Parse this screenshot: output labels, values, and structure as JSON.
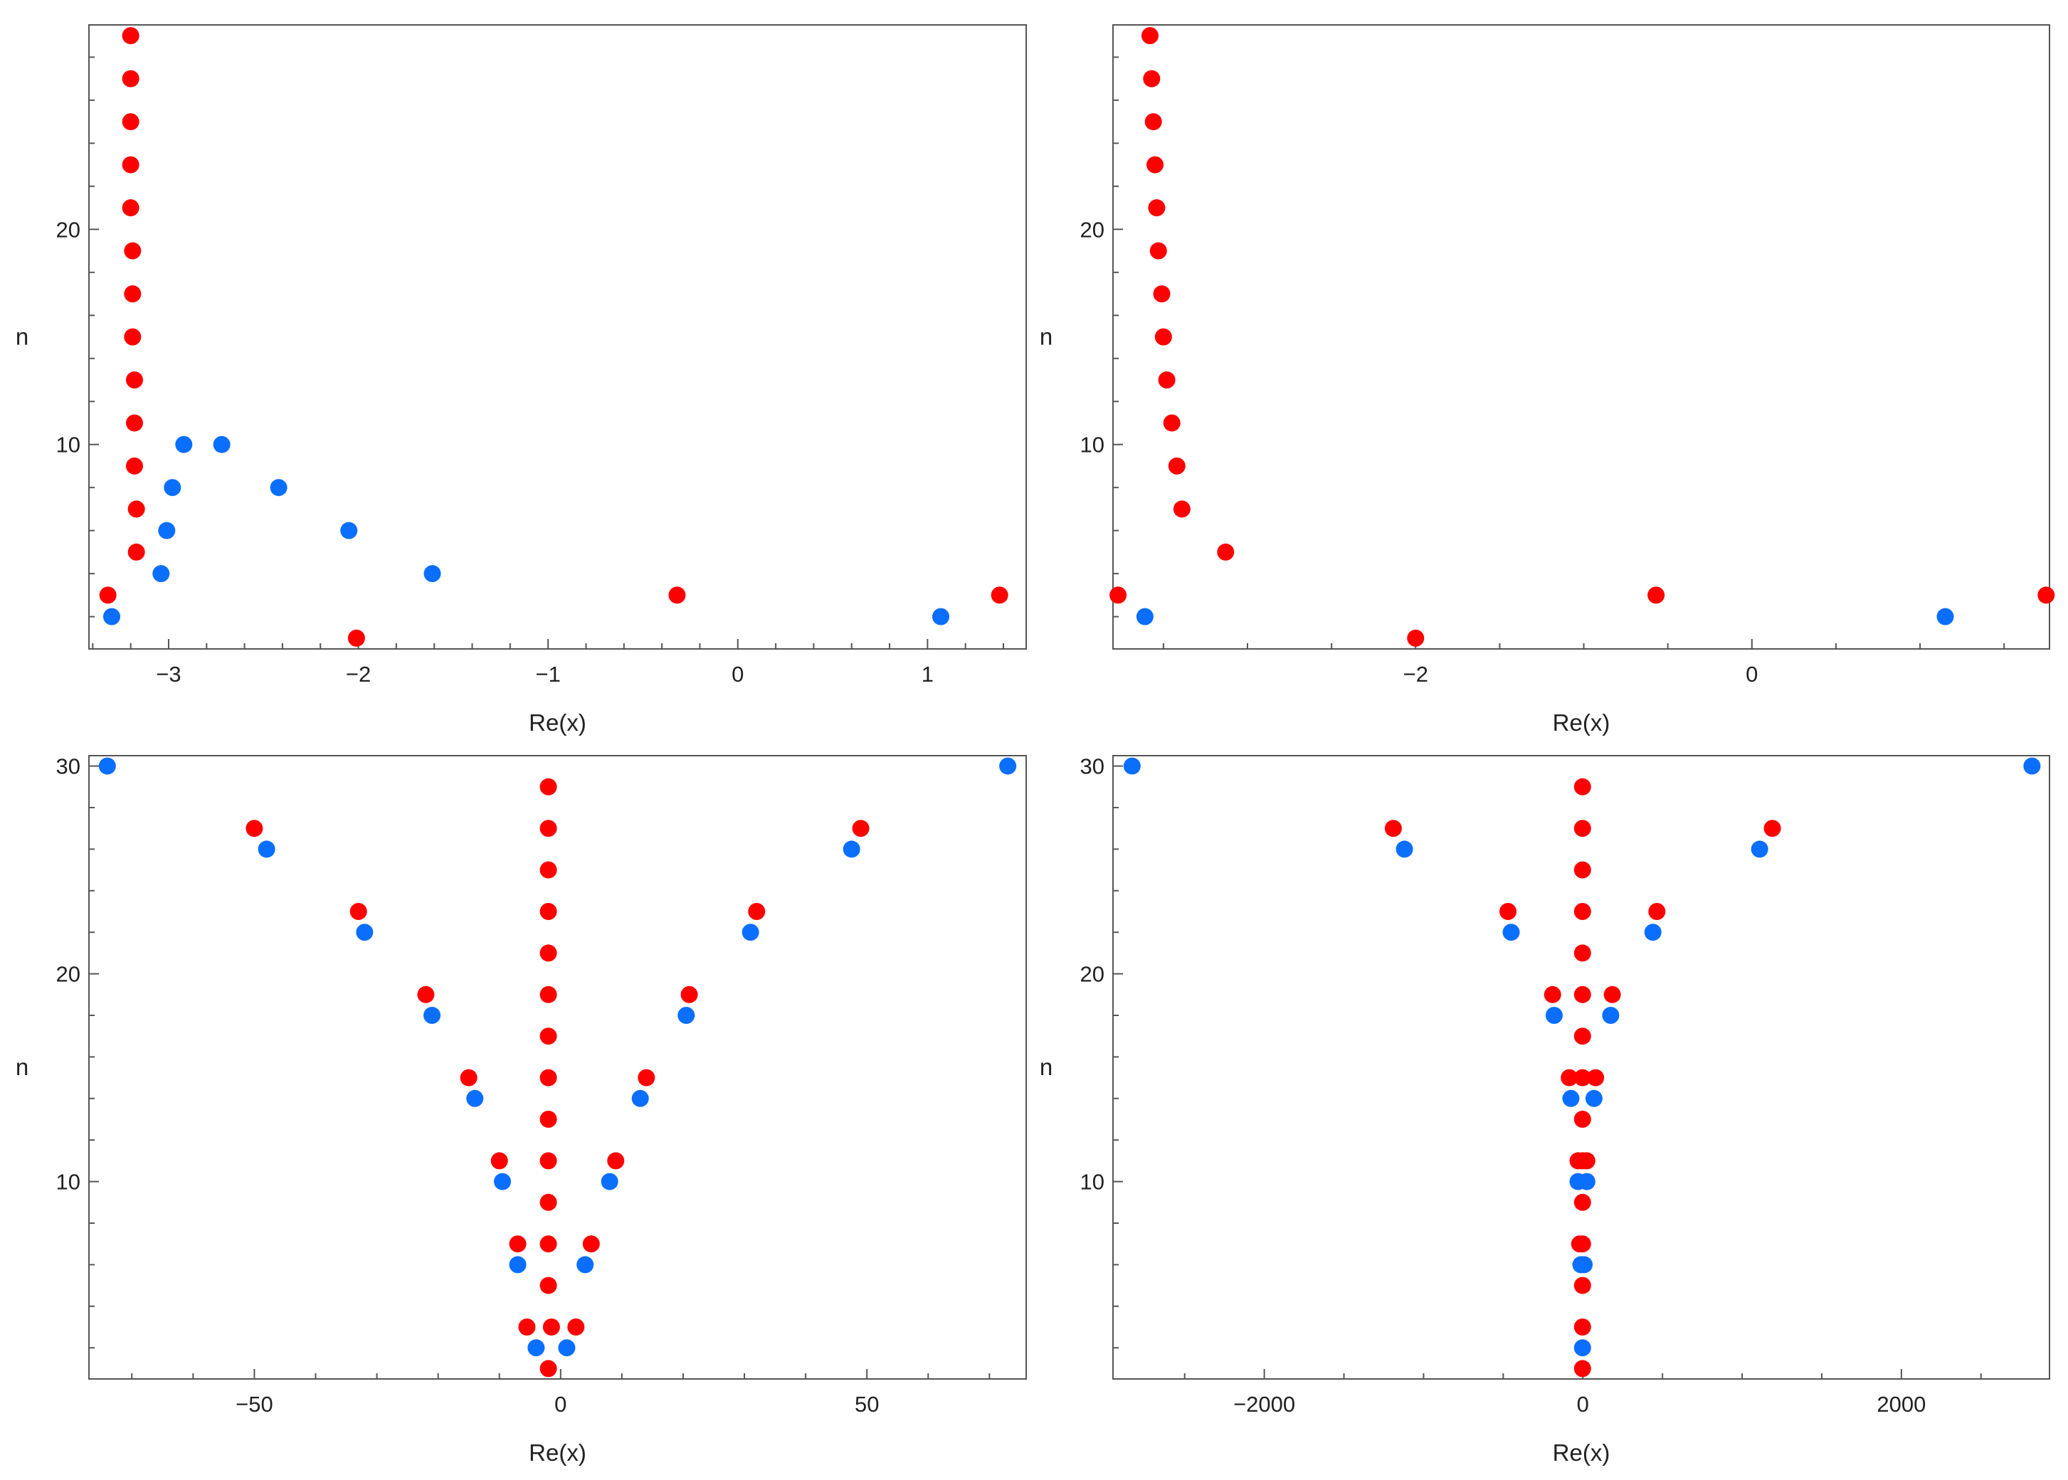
{
  "colors": {
    "red": "#FF0000",
    "blue": "#0A6EFF",
    "frame": "#555555",
    "text": "#222222"
  },
  "chart_data": [
    {
      "type": "scatter",
      "title": "",
      "xlabel": "Re(x)",
      "ylabel": "n",
      "xlim": [
        -3.42,
        1.52
      ],
      "ylim": [
        0.5,
        29.5
      ],
      "xticks": [
        -3,
        -2,
        -1,
        0,
        1
      ],
      "xtick_labels": [
        "−3",
        "−2",
        "−1",
        "0",
        "1"
      ],
      "x_minor_step": 0.2,
      "yticks": [
        10,
        20
      ],
      "ytick_labels": [
        "10",
        "20"
      ],
      "y_minor_step": 2,
      "series": [
        {
          "name": "red",
          "color": "#FF0000",
          "points": [
            [
              -3.32,
              3
            ],
            [
              -3.2,
              29
            ],
            [
              -3.2,
              27
            ],
            [
              -3.2,
              25
            ],
            [
              -3.2,
              23
            ],
            [
              -3.2,
              21
            ],
            [
              -3.19,
              19
            ],
            [
              -3.19,
              17
            ],
            [
              -3.19,
              15
            ],
            [
              -3.18,
              13
            ],
            [
              -3.18,
              11
            ],
            [
              -3.18,
              9
            ],
            [
              -3.17,
              7
            ],
            [
              -3.17,
              5
            ],
            [
              -2.01,
              1
            ],
            [
              -0.32,
              3
            ],
            [
              1.38,
              3
            ]
          ]
        },
        {
          "name": "blue",
          "color": "#0A6EFF",
          "points": [
            [
              -3.3,
              2
            ],
            [
              -3.04,
              4
            ],
            [
              -3.01,
              6
            ],
            [
              -2.98,
              8
            ],
            [
              -2.92,
              10
            ],
            [
              -2.72,
              10
            ],
            [
              -2.42,
              8
            ],
            [
              -2.05,
              6
            ],
            [
              -1.61,
              4
            ],
            [
              1.07,
              2
            ]
          ]
        }
      ]
    },
    {
      "type": "scatter",
      "title": "",
      "xlabel": "Re(x)",
      "ylabel": "n",
      "xlim": [
        -3.8,
        1.77
      ],
      "ylim": [
        0.5,
        29.5
      ],
      "xticks": [
        -2,
        0
      ],
      "xtick_labels": [
        "−2",
        "0"
      ],
      "x_minor_step": 0.5,
      "yticks": [
        10,
        20
      ],
      "ytick_labels": [
        "10",
        "20"
      ],
      "y_minor_step": 2,
      "series": [
        {
          "name": "red",
          "color": "#FF0000",
          "points": [
            [
              -3.77,
              3
            ],
            [
              -3.58,
              29
            ],
            [
              -3.57,
              27
            ],
            [
              -3.56,
              25
            ],
            [
              -3.55,
              23
            ],
            [
              -3.54,
              21
            ],
            [
              -3.53,
              19
            ],
            [
              -3.51,
              17
            ],
            [
              -3.5,
              15
            ],
            [
              -3.48,
              13
            ],
            [
              -3.45,
              11
            ],
            [
              -3.42,
              9
            ],
            [
              -3.39,
              7
            ],
            [
              -3.13,
              5
            ],
            [
              -2.0,
              1
            ],
            [
              -0.57,
              3
            ],
            [
              1.75,
              3
            ]
          ]
        },
        {
          "name": "blue",
          "color": "#0A6EFF",
          "points": [
            [
              -3.61,
              2
            ],
            [
              1.15,
              2
            ]
          ]
        }
      ]
    },
    {
      "type": "scatter",
      "title": "",
      "xlabel": "Re(x)",
      "ylabel": "n",
      "xlim": [
        -77,
        76
      ],
      "ylim": [
        0.5,
        30.5
      ],
      "xticks": [
        -50,
        0,
        50
      ],
      "xtick_labels": [
        "−50",
        "0",
        "50"
      ],
      "x_minor_step": 10,
      "yticks": [
        10,
        20,
        30
      ],
      "ytick_labels": [
        "10",
        "20",
        "30"
      ],
      "y_minor_step": 2,
      "series": [
        {
          "name": "red",
          "color": "#FF0000",
          "points": [
            [
              -2,
              1
            ],
            [
              -5.5,
              3
            ],
            [
              -1.5,
              3
            ],
            [
              2.5,
              3
            ],
            [
              -2,
              5
            ],
            [
              -7,
              7
            ],
            [
              -2,
              7
            ],
            [
              5,
              7
            ],
            [
              -2,
              9
            ],
            [
              -10,
              11
            ],
            [
              -2,
              11
            ],
            [
              9,
              11
            ],
            [
              -2,
              13
            ],
            [
              -15,
              15
            ],
            [
              -2,
              15
            ],
            [
              14,
              15
            ],
            [
              -2,
              17
            ],
            [
              -22,
              19
            ],
            [
              -2,
              19
            ],
            [
              21,
              19
            ],
            [
              -2,
              21
            ],
            [
              -33,
              23
            ],
            [
              -2,
              23
            ],
            [
              32,
              23
            ],
            [
              -2,
              25
            ],
            [
              -50,
              27
            ],
            [
              -2,
              27
            ],
            [
              49,
              27
            ],
            [
              -2,
              29
            ]
          ]
        },
        {
          "name": "blue",
          "color": "#0A6EFF",
          "points": [
            [
              -4,
              2
            ],
            [
              1,
              2
            ],
            [
              -7,
              6
            ],
            [
              4,
              6
            ],
            [
              -9.5,
              10
            ],
            [
              8,
              10
            ],
            [
              -14,
              14
            ],
            [
              13,
              14
            ],
            [
              -21,
              18
            ],
            [
              20.5,
              18
            ],
            [
              -32,
              22
            ],
            [
              31,
              22
            ],
            [
              -48,
              26
            ],
            [
              47.5,
              26
            ],
            [
              -74,
              30
            ],
            [
              73,
              30
            ]
          ]
        }
      ]
    },
    {
      "type": "scatter",
      "title": "",
      "xlabel": "Re(x)",
      "ylabel": "n",
      "xlim": [
        -2950,
        2930
      ],
      "ylim": [
        0.5,
        30.5
      ],
      "xticks": [
        -2000,
        0,
        2000
      ],
      "xtick_labels": [
        "−2000",
        "0",
        "2000"
      ],
      "x_minor_step": 500,
      "yticks": [
        10,
        20,
        30
      ],
      "ytick_labels": [
        "10",
        "20",
        "30"
      ],
      "y_minor_step": 2,
      "series": [
        {
          "name": "red",
          "color": "#FF0000",
          "points": [
            [
              -2,
              1
            ],
            [
              -2,
              3
            ],
            [
              -2,
              5
            ],
            [
              -20,
              7
            ],
            [
              -2,
              7
            ],
            [
              -2,
              9
            ],
            [
              -30,
              11
            ],
            [
              -2,
              11
            ],
            [
              25,
              11
            ],
            [
              -2,
              13
            ],
            [
              -85,
              15
            ],
            [
              -2,
              15
            ],
            [
              80,
              15
            ],
            [
              -2,
              17
            ],
            [
              -190,
              19
            ],
            [
              -2,
              19
            ],
            [
              185,
              19
            ],
            [
              -2,
              21
            ],
            [
              -470,
              23
            ],
            [
              -2,
              23
            ],
            [
              465,
              23
            ],
            [
              -2,
              25
            ],
            [
              -1190,
              27
            ],
            [
              -2,
              27
            ],
            [
              1190,
              27
            ],
            [
              -2,
              29
            ]
          ]
        },
        {
          "name": "blue",
          "color": "#0A6EFF",
          "points": [
            [
              -2,
              2
            ],
            [
              -12,
              6
            ],
            [
              8,
              6
            ],
            [
              -30,
              10
            ],
            [
              25,
              10
            ],
            [
              -75,
              14
            ],
            [
              70,
              14
            ],
            [
              -180,
              18
            ],
            [
              175,
              18
            ],
            [
              -450,
              22
            ],
            [
              440,
              22
            ],
            [
              -1120,
              26
            ],
            [
              1110,
              26
            ],
            [
              -2830,
              30
            ],
            [
              2820,
              30
            ]
          ]
        }
      ]
    }
  ]
}
